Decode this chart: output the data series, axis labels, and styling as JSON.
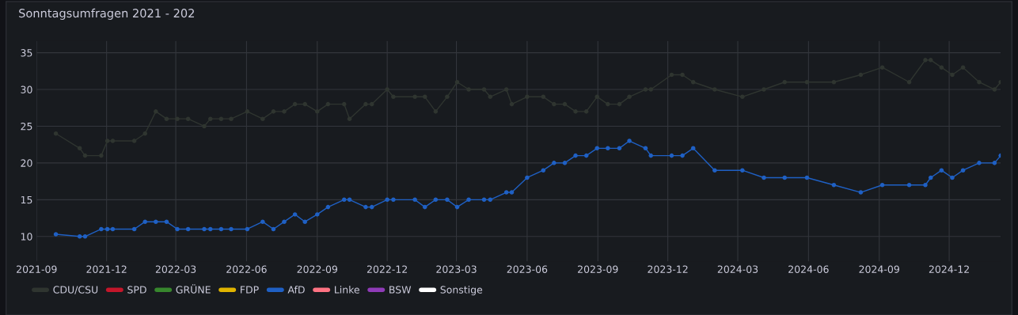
{
  "chart_data": {
    "type": "line",
    "title": "Sonntagsumfragen 2021 - 202",
    "x": [
      "2021-09-26",
      "2021-10-27",
      "2021-11-03",
      "2021-11-24",
      "2021-12-02",
      "2021-12-09",
      "2022-01-06",
      "2022-01-20",
      "2022-02-03",
      "2022-02-17",
      "2022-03-03",
      "2022-03-17",
      "2022-04-07",
      "2022-04-15",
      "2022-04-29",
      "2022-05-12",
      "2022-06-02",
      "2022-06-22",
      "2022-07-06",
      "2022-07-20",
      "2022-08-03",
      "2022-08-16",
      "2022-09-01",
      "2022-09-15",
      "2022-10-06",
      "2022-10-13",
      "2022-11-03",
      "2022-11-11",
      "2022-12-01",
      "2022-12-09",
      "2023-01-06",
      "2023-01-19",
      "2023-02-02",
      "2023-02-17",
      "2023-03-02",
      "2023-03-17",
      "2023-04-06",
      "2023-04-14",
      "2023-05-05",
      "2023-05-12",
      "2023-06-01",
      "2023-06-22",
      "2023-07-06",
      "2023-07-20",
      "2023-08-03",
      "2023-08-17",
      "2023-08-31",
      "2023-09-14",
      "2023-09-29",
      "2023-10-12",
      "2023-11-02",
      "2023-11-09",
      "2023-12-06",
      "2023-12-20",
      "2024-01-03",
      "2024-01-31",
      "2024-03-07",
      "2024-04-04",
      "2024-05-01",
      "2024-05-30",
      "2024-07-04",
      "2024-08-08",
      "2024-09-05",
      "2024-10-10",
      "2024-10-31",
      "2024-11-07",
      "2024-11-21",
      "2024-12-05",
      "2024-12-19",
      "2025-01-09",
      "2025-01-29",
      "2025-02-06"
    ],
    "series": [
      {
        "name": "CDU/CSU",
        "color": "#2f3530",
        "values": [
          24,
          22,
          21,
          21,
          23,
          23,
          23,
          24,
          27,
          26,
          26,
          26,
          25,
          26,
          26,
          26,
          27,
          26,
          27,
          27,
          28,
          28,
          27,
          28,
          28,
          26,
          28,
          28,
          30,
          29,
          29,
          29,
          27,
          29,
          31,
          30,
          30,
          29,
          30,
          28,
          29,
          29,
          28,
          28,
          27,
          27,
          29,
          28,
          28,
          29,
          30,
          30,
          32,
          32,
          31,
          30,
          29,
          30,
          31,
          31,
          31,
          32,
          33,
          31,
          34,
          34,
          33,
          32,
          33,
          31,
          30,
          31
        ]
      },
      {
        "name": "SPD",
        "color": "#c4162a",
        "values": [
          null,
          null,
          null,
          null,
          null,
          null,
          null,
          null,
          null,
          null,
          null,
          null,
          null,
          null,
          null,
          null,
          null,
          null,
          null,
          null,
          null,
          null,
          null,
          null,
          null,
          null,
          null,
          null,
          null,
          null,
          null,
          null,
          null,
          null,
          null,
          null,
          null,
          null,
          null,
          null,
          null,
          null,
          null,
          null,
          null,
          null,
          null,
          null,
          null,
          null,
          null,
          null,
          null,
          null,
          null,
          null,
          null,
          null,
          null,
          null,
          null,
          null,
          null,
          null,
          null,
          null,
          null,
          null,
          null,
          null,
          null,
          null
        ]
      },
      {
        "name": "GRÜNE",
        "color": "#37872d",
        "values": [
          null,
          null,
          null,
          null,
          null,
          null,
          null,
          null,
          null,
          null,
          null,
          null,
          null,
          null,
          null,
          null,
          null,
          null,
          null,
          null,
          null,
          null,
          null,
          null,
          null,
          null,
          null,
          null,
          null,
          null,
          null,
          null,
          null,
          null,
          null,
          null,
          null,
          null,
          null,
          null,
          null,
          null,
          null,
          null,
          null,
          null,
          null,
          null,
          null,
          null,
          null,
          null,
          null,
          null,
          null,
          null,
          null,
          null,
          null,
          null,
          null,
          null,
          null,
          null,
          null,
          null,
          null,
          null,
          null,
          null,
          null,
          null
        ]
      },
      {
        "name": "FDP",
        "color": "#e0b400",
        "values": [
          null,
          null,
          null,
          null,
          null,
          null,
          null,
          null,
          null,
          null,
          null,
          null,
          null,
          null,
          null,
          null,
          null,
          null,
          null,
          null,
          null,
          null,
          null,
          null,
          null,
          null,
          null,
          null,
          null,
          null,
          null,
          null,
          null,
          null,
          null,
          null,
          null,
          null,
          null,
          null,
          null,
          null,
          null,
          null,
          null,
          null,
          null,
          null,
          null,
          null,
          null,
          null,
          null,
          null,
          null,
          null,
          null,
          null,
          null,
          null,
          null,
          null,
          null,
          null,
          null,
          null,
          null,
          null,
          null,
          null,
          null,
          null
        ]
      },
      {
        "name": "AfD",
        "color": "#1f60c4",
        "values": [
          10.3,
          10,
          10,
          11,
          11,
          11,
          11,
          12,
          12,
          12,
          11,
          11,
          11,
          11,
          11,
          11,
          11,
          12,
          11,
          12,
          13,
          12,
          13,
          14,
          15,
          15,
          14,
          14,
          15,
          15,
          15,
          14,
          15,
          15,
          14,
          15,
          15,
          15,
          16,
          16,
          18,
          19,
          20,
          20,
          21,
          21,
          22,
          22,
          22,
          23,
          22,
          21,
          21,
          21,
          22,
          19,
          19,
          18,
          18,
          18,
          17,
          16,
          17,
          17,
          17,
          18,
          19,
          18,
          19,
          20,
          20,
          21
        ]
      },
      {
        "name": "Linke",
        "color": "#ff7383",
        "values": [
          null,
          null,
          null,
          null,
          null,
          null,
          null,
          null,
          null,
          null,
          null,
          null,
          null,
          null,
          null,
          null,
          null,
          null,
          null,
          null,
          null,
          null,
          null,
          null,
          null,
          null,
          null,
          null,
          null,
          null,
          null,
          null,
          null,
          null,
          null,
          null,
          null,
          null,
          null,
          null,
          null,
          null,
          null,
          null,
          null,
          null,
          null,
          null,
          null,
          null,
          null,
          null,
          null,
          null,
          null,
          null,
          null,
          null,
          null,
          null,
          null,
          null,
          null,
          null,
          null,
          null,
          null,
          null,
          null,
          null,
          null,
          null
        ]
      },
      {
        "name": "BSW",
        "color": "#8f3bb8",
        "values": [
          null,
          null,
          null,
          null,
          null,
          null,
          null,
          null,
          null,
          null,
          null,
          null,
          null,
          null,
          null,
          null,
          null,
          null,
          null,
          null,
          null,
          null,
          null,
          null,
          null,
          null,
          null,
          null,
          null,
          null,
          null,
          null,
          null,
          null,
          null,
          null,
          null,
          null,
          null,
          null,
          null,
          null,
          null,
          null,
          null,
          null,
          null,
          null,
          null,
          null,
          null,
          null,
          null,
          null,
          null,
          null,
          null,
          null,
          null,
          null,
          null,
          null,
          null,
          null,
          null,
          null,
          null,
          null,
          null,
          null,
          null,
          null
        ]
      },
      {
        "name": "Sonstige",
        "color": "#ffffff",
        "values": [
          null,
          null,
          null,
          null,
          null,
          null,
          null,
          null,
          null,
          null,
          null,
          null,
          null,
          null,
          null,
          null,
          null,
          null,
          null,
          null,
          null,
          null,
          null,
          null,
          null,
          null,
          null,
          null,
          null,
          null,
          null,
          null,
          null,
          null,
          null,
          null,
          null,
          null,
          null,
          null,
          null,
          null,
          null,
          null,
          null,
          null,
          null,
          null,
          null,
          null,
          null,
          null,
          null,
          null,
          null,
          null,
          null,
          null,
          null,
          null,
          null,
          null,
          null,
          null,
          null,
          null,
          null,
          null,
          null,
          null,
          null,
          null
        ]
      }
    ],
    "xlim": [
      "2021-09-01",
      "2025-02-06"
    ],
    "xticks": [
      {
        "value": "2021-09-01",
        "label": "2021-09"
      },
      {
        "value": "2021-12-01",
        "label": "2021-12"
      },
      {
        "value": "2022-03-01",
        "label": "2022-03"
      },
      {
        "value": "2022-06-01",
        "label": "2022-06"
      },
      {
        "value": "2022-09-01",
        "label": "2022-09"
      },
      {
        "value": "2022-12-01",
        "label": "2022-12"
      },
      {
        "value": "2023-03-01",
        "label": "2023-03"
      },
      {
        "value": "2023-06-01",
        "label": "2023-06"
      },
      {
        "value": "2023-09-01",
        "label": "2023-09"
      },
      {
        "value": "2023-12-01",
        "label": "2023-12"
      },
      {
        "value": "2024-03-01",
        "label": "2024-03"
      },
      {
        "value": "2024-06-01",
        "label": "2024-06"
      },
      {
        "value": "2024-09-01",
        "label": "2024-09"
      },
      {
        "value": "2024-12-01",
        "label": "2024-12"
      }
    ],
    "ylim": [
      6.6,
      36.6
    ],
    "yticks": [
      10,
      15,
      20,
      25,
      30,
      35
    ],
    "grid": true,
    "legend": "bottom left",
    "marker": "circle",
    "line_style": "solid"
  }
}
